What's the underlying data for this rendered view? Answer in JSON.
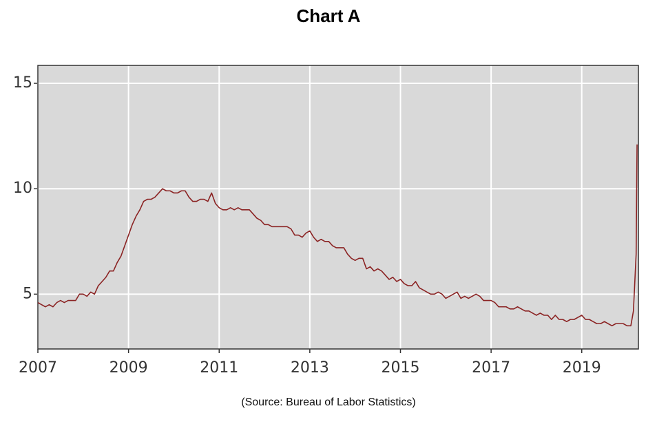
{
  "chart_data": {
    "type": "line",
    "title": "Chart A",
    "source": "(Source:  Bureau of Labor Statistics)",
    "xlim": [
      2007,
      2020.25
    ],
    "ylim": [
      2.4,
      15.85
    ],
    "xticks": [
      2007,
      2009,
      2011,
      2013,
      2015,
      2017,
      2019
    ],
    "yticks": [
      5,
      10,
      15
    ],
    "grid": true,
    "x": [
      2007,
      2007.083,
      2007.167,
      2007.25,
      2007.333,
      2007.417,
      2007.5,
      2007.583,
      2007.667,
      2007.75,
      2007.833,
      2007.917,
      2008,
      2008.083,
      2008.167,
      2008.25,
      2008.333,
      2008.417,
      2008.5,
      2008.583,
      2008.667,
      2008.75,
      2008.833,
      2008.917,
      2009,
      2009.083,
      2009.167,
      2009.25,
      2009.333,
      2009.417,
      2009.5,
      2009.583,
      2009.667,
      2009.75,
      2009.833,
      2009.917,
      2010,
      2010.083,
      2010.167,
      2010.25,
      2010.333,
      2010.417,
      2010.5,
      2010.583,
      2010.667,
      2010.75,
      2010.833,
      2010.917,
      2011,
      2011.083,
      2011.167,
      2011.25,
      2011.333,
      2011.417,
      2011.5,
      2011.583,
      2011.667,
      2011.75,
      2011.833,
      2011.917,
      2012,
      2012.083,
      2012.167,
      2012.25,
      2012.333,
      2012.417,
      2012.5,
      2012.583,
      2012.667,
      2012.75,
      2012.833,
      2012.917,
      2013,
      2013.083,
      2013.167,
      2013.25,
      2013.333,
      2013.417,
      2013.5,
      2013.583,
      2013.667,
      2013.75,
      2013.833,
      2013.917,
      2014,
      2014.083,
      2014.167,
      2014.25,
      2014.333,
      2014.417,
      2014.5,
      2014.583,
      2014.667,
      2014.75,
      2014.833,
      2014.917,
      2015,
      2015.083,
      2015.167,
      2015.25,
      2015.333,
      2015.417,
      2015.5,
      2015.583,
      2015.667,
      2015.75,
      2015.833,
      2015.917,
      2016,
      2016.083,
      2016.167,
      2016.25,
      2016.333,
      2016.417,
      2016.5,
      2016.583,
      2016.667,
      2016.75,
      2016.833,
      2016.917,
      2017,
      2017.083,
      2017.167,
      2017.25,
      2017.333,
      2017.417,
      2017.5,
      2017.583,
      2017.667,
      2017.75,
      2017.833,
      2017.917,
      2018,
      2018.083,
      2018.167,
      2018.25,
      2018.333,
      2018.417,
      2018.5,
      2018.583,
      2018.667,
      2018.75,
      2018.833,
      2018.917,
      2019,
      2019.083,
      2019.167,
      2019.25,
      2019.333,
      2019.417,
      2019.5,
      2019.583,
      2019.667,
      2019.75,
      2019.833,
      2019.917,
      2020,
      2020.083,
      2020.14,
      2020.2,
      2020.22
    ],
    "series": [
      {
        "color": "#8b2323",
        "values": [
          4.6,
          4.5,
          4.4,
          4.5,
          4.4,
          4.6,
          4.7,
          4.6,
          4.7,
          4.7,
          4.7,
          5.0,
          5.0,
          4.9,
          5.1,
          5.0,
          5.4,
          5.6,
          5.8,
          6.1,
          6.1,
          6.5,
          6.8,
          7.3,
          7.8,
          8.3,
          8.7,
          9.0,
          9.4,
          9.5,
          9.5,
          9.6,
          9.8,
          10.0,
          9.9,
          9.9,
          9.8,
          9.8,
          9.9,
          9.9,
          9.6,
          9.4,
          9.4,
          9.5,
          9.5,
          9.4,
          9.8,
          9.3,
          9.1,
          9.0,
          9.0,
          9.1,
          9.0,
          9.1,
          9.0,
          9.0,
          9.0,
          8.8,
          8.6,
          8.5,
          8.3,
          8.3,
          8.2,
          8.2,
          8.2,
          8.2,
          8.2,
          8.1,
          7.8,
          7.8,
          7.7,
          7.9,
          8.0,
          7.7,
          7.5,
          7.6,
          7.5,
          7.5,
          7.3,
          7.2,
          7.2,
          7.2,
          6.9,
          6.7,
          6.6,
          6.7,
          6.7,
          6.2,
          6.3,
          6.1,
          6.2,
          6.1,
          5.9,
          5.7,
          5.8,
          5.6,
          5.7,
          5.5,
          5.4,
          5.4,
          5.6,
          5.3,
          5.2,
          5.1,
          5.0,
          5.0,
          5.1,
          5.0,
          4.8,
          4.9,
          5.0,
          5.1,
          4.8,
          4.9,
          4.8,
          4.9,
          5.0,
          4.9,
          4.7,
          4.7,
          4.7,
          4.6,
          4.4,
          4.4,
          4.4,
          4.3,
          4.3,
          4.4,
          4.3,
          4.2,
          4.2,
          4.1,
          4.0,
          4.1,
          4.0,
          4.0,
          3.8,
          4.0,
          3.8,
          3.8,
          3.7,
          3.8,
          3.8,
          3.9,
          4.0,
          3.8,
          3.8,
          3.7,
          3.6,
          3.6,
          3.7,
          3.6,
          3.5,
          3.6,
          3.6,
          3.6,
          3.5,
          3.5,
          4.2,
          6.9,
          12.1
        ]
      }
    ]
  }
}
